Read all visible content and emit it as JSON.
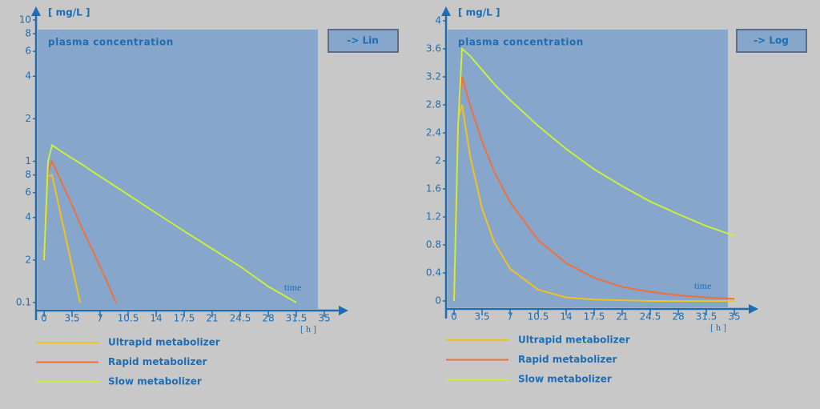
{
  "chart_data": [
    {
      "type": "line",
      "title": "plasma concentration",
      "y_label": "[ mg/L ]",
      "x_label": "time",
      "x_unit": "[ h ]",
      "button": "-> Lin",
      "log_y": true,
      "xlim": [
        -1,
        37
      ],
      "xticks": [
        0,
        3.5,
        7,
        10.5,
        14,
        17.5,
        21,
        24.5,
        28,
        31.5,
        35
      ],
      "ylim": [
        0.1,
        10
      ],
      "yticks": [
        10,
        8,
        6,
        4,
        2,
        1,
        {
          "value": 0.8,
          "label": "8"
        },
        {
          "value": 0.6,
          "label": "6"
        },
        {
          "value": 0.4,
          "label": "4"
        },
        {
          "value": 0.2,
          "label": "2"
        },
        0.1
      ],
      "x": [
        0,
        0.5,
        1,
        2,
        3.5,
        4.5,
        7,
        9,
        10.5,
        14,
        17.5,
        21,
        24.5,
        28,
        31.5
      ],
      "series": [
        {
          "name": "Ultrapid metabolizer",
          "color": "#f2c21c",
          "values": [
            0.2,
            0.78,
            0.8,
            0.44,
            0.18,
            0.1,
            null,
            null,
            null,
            null,
            null,
            null,
            null,
            null,
            null
          ]
        },
        {
          "name": "Rapid metabolizer",
          "color": "#f0703c",
          "values": [
            0.2,
            0.85,
            1.0,
            0.75,
            0.49,
            0.36,
            0.18,
            0.1,
            null,
            null,
            null,
            null,
            null,
            null,
            null
          ]
        },
        {
          "name": "Slow metabolizer",
          "color": "#c8f03c",
          "values": [
            0.2,
            1.0,
            1.3,
            1.19,
            1.05,
            0.97,
            0.78,
            0.66,
            0.58,
            0.43,
            0.32,
            0.24,
            0.18,
            0.13,
            0.1
          ]
        }
      ]
    },
    {
      "type": "line",
      "title": "plasma concentration",
      "y_label": "[ mg/L ]",
      "x_label": "time",
      "x_unit": "[ h ]",
      "button": "-> Log",
      "log_y": false,
      "xlim": [
        -1,
        37
      ],
      "xticks": [
        0,
        3.5,
        7,
        10.5,
        14,
        17.5,
        21,
        24.5,
        28,
        31.5,
        35
      ],
      "ylim": [
        0,
        4
      ],
      "yticks": [
        0,
        0.4,
        0.8,
        1.2,
        1.6,
        2,
        2.4,
        2.8,
        3.2,
        3.6,
        4
      ],
      "x": [
        0,
        0.5,
        1,
        2,
        3.5,
        5,
        7,
        10.5,
        14,
        17.5,
        21,
        24.5,
        28,
        31.5,
        35
      ],
      "series": [
        {
          "name": "Ultrapid metabolizer",
          "color": "#f2c21c",
          "values": [
            0,
            2.6,
            2.8,
            2.07,
            1.32,
            0.84,
            0.46,
            0.16,
            0.05,
            0.02,
            0.01,
            0,
            0,
            0,
            0
          ]
        },
        {
          "name": "Rapid metabolizer",
          "color": "#f0703c",
          "values": [
            0,
            2.6,
            3.2,
            2.8,
            2.28,
            1.85,
            1.41,
            0.87,
            0.54,
            0.33,
            0.2,
            0.13,
            0.08,
            0.05,
            0.03
          ]
        },
        {
          "name": "Slow metabolizer",
          "color": "#c8f03c",
          "values": [
            0,
            2.5,
            3.6,
            3.5,
            3.3,
            3.1,
            2.87,
            2.5,
            2.17,
            1.88,
            1.64,
            1.42,
            1.24,
            1.07,
            0.93
          ]
        }
      ]
    }
  ]
}
